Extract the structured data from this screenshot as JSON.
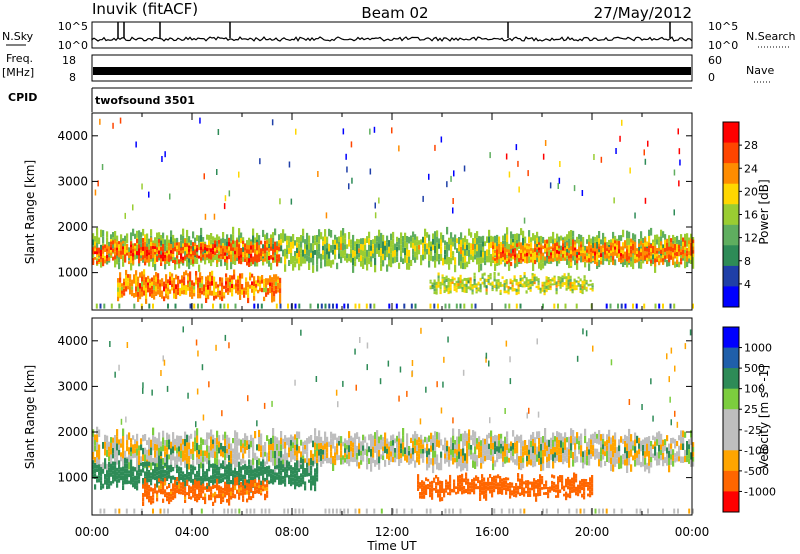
{
  "header": {
    "station": "Inuvik (fitACF)",
    "beam": "Beam 02",
    "date": "27/May/2012"
  },
  "panels": {
    "nsky_label": "N.Sky",
    "nsearch_label": "N.Search",
    "nsky_ticks": [
      "10^5",
      "10^0"
    ],
    "nsearch_ticks": [
      "10^5",
      "10^0"
    ],
    "freq_label_1": "Freq.",
    "freq_label_2": "[MHz]",
    "freq_ticks": [
      "18",
      "8"
    ],
    "nave_label": "Nave",
    "nave_ticks": [
      "60",
      "0"
    ],
    "cpid_label": "CPID",
    "cpid_value": "twofsound 3501"
  },
  "colors": {
    "power": [
      "#0000ff",
      "#1f3fa8",
      "#2e8b57",
      "#5fae5f",
      "#9acd32",
      "#ffd700",
      "#ff8c00",
      "#ff4500",
      "#ff0000"
    ],
    "velocity": [
      "#0000ff",
      "#1f5faa",
      "#2e8b57",
      "#7ccd3e",
      "#bebebe",
      "#bebebe",
      "#ffa500",
      "#ff6600",
      "#ff0000"
    ]
  },
  "chart_data": [
    {
      "type": "heatmap",
      "name": "power",
      "ylabel": "Slant Range [km]",
      "yticks": [
        "1000",
        "2000",
        "3000",
        "4000"
      ],
      "ylim": [
        180,
        4500
      ],
      "xticks": [
        "00:00",
        "04:00",
        "08:00",
        "12:00",
        "16:00",
        "20:00",
        "00:00"
      ],
      "xlim": [
        0,
        24
      ],
      "colorbar_label": "Power [dB]",
      "colorbar_ticks": [
        "28",
        "24",
        "20",
        "16",
        "12",
        "8",
        "4"
      ],
      "colorbar_range": [
        0,
        30
      ],
      "bands": [
        {
          "t_start": 0,
          "t_end": 24,
          "range_center": 1500,
          "range_halfwidth": 350,
          "value": 14
        },
        {
          "t_start": 0,
          "t_end": 7.5,
          "range_center": 1450,
          "range_halfwidth": 200,
          "value": 24
        },
        {
          "t_start": 1,
          "t_end": 7.5,
          "range_center": 700,
          "range_halfwidth": 250,
          "value": 22
        },
        {
          "t_start": 13.5,
          "t_end": 20,
          "range_center": 750,
          "range_halfwidth": 150,
          "value": 16
        },
        {
          "t_start": 16,
          "t_end": 24,
          "range_center": 1450,
          "range_halfwidth": 200,
          "value": 22
        }
      ]
    },
    {
      "type": "heatmap",
      "name": "velocity",
      "ylabel": "Slant Range [km]",
      "yticks": [
        "1000",
        "2000",
        "3000",
        "4000"
      ],
      "ylim": [
        180,
        4500
      ],
      "xticks": [
        "00:00",
        "04:00",
        "08:00",
        "12:00",
        "16:00",
        "20:00",
        "00:00"
      ],
      "xlim": [
        0,
        24
      ],
      "xlabel": "Time UT",
      "colorbar_label": "Velocity [m s^-1]",
      "colorbar_ticks": [
        "1000",
        "500",
        "100",
        "25",
        "-25",
        "-100",
        "-500",
        "-1000"
      ],
      "bands": [
        {
          "t_start": 0,
          "t_end": 24,
          "range_center": 1600,
          "range_halfwidth": 350,
          "value": 0
        },
        {
          "t_start": 0,
          "t_end": 9,
          "range_center": 1050,
          "range_halfwidth": 250,
          "value": 150
        },
        {
          "t_start": 2,
          "t_end": 7,
          "range_center": 700,
          "range_halfwidth": 200,
          "value": -150
        },
        {
          "t_start": 13,
          "t_end": 20,
          "range_center": 800,
          "range_halfwidth": 200,
          "value": -200
        }
      ]
    }
  ]
}
